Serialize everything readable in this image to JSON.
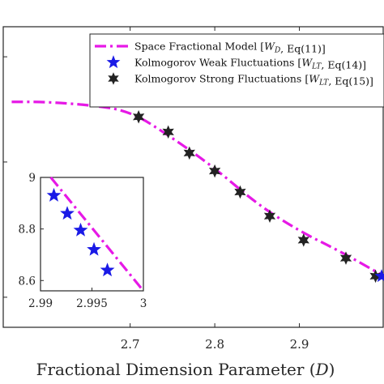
{
  "chart_data": [
    {
      "type": "line",
      "xlabel": "Fractional Dimension Parameter (D)",
      "xlim": [
        2.55,
        3.0
      ],
      "ylim": [
        8.45,
        9.45
      ],
      "x_ticks": [
        "2.7",
        "2.8",
        "2.9"
      ],
      "legend": {
        "position": "top-right",
        "entries": [
          "Space Fractional Model [W_D, Eq(11)]",
          "Kolmogorov Weak Fluctuations [W_LT, Eq(14)]",
          "Kolmogorov Strong Fluctuations [W_LT, Eq(15)]"
        ]
      },
      "series": [
        {
          "name": "Space Fractional Model [W_D, Eq(11)]",
          "style": "dash-dot line",
          "color": "#e619e6",
          "x": [
            2.56,
            2.6,
            2.65,
            2.7,
            2.75,
            2.8,
            2.85,
            2.9,
            2.95,
            3.0
          ],
          "y": [
            9.2,
            9.2,
            9.19,
            9.17,
            9.08,
            8.98,
            8.86,
            8.77,
            8.7,
            8.62
          ]
        },
        {
          "name": "Kolmogorov Strong Fluctuations [W_LT, Eq(15)]",
          "style": "6-point star markers",
          "color": "#222222",
          "x": [
            2.67,
            2.71,
            2.745,
            2.77,
            2.8,
            2.83,
            2.865,
            2.905,
            2.955,
            2.99
          ],
          "y": [
            9.27,
            9.15,
            9.1,
            9.03,
            8.97,
            8.9,
            8.82,
            8.74,
            8.68,
            8.62
          ]
        },
        {
          "name": "Kolmogorov Weak Fluctuations [W_LT, Eq(14)]",
          "style": "5-point star markers",
          "color": "#1a1ae6",
          "x": [
            3.0
          ],
          "y": [
            8.62
          ]
        }
      ]
    },
    {
      "type": "line",
      "role": "inset",
      "xlim": [
        2.99,
        3.0
      ],
      "ylim": [
        8.56,
        9.0
      ],
      "x_ticks": [
        "2.99",
        "2.995",
        "3"
      ],
      "y_ticks": [
        "8.6",
        "8.8",
        "9"
      ],
      "series": [
        {
          "name": "Space Fractional Model [W_D, Eq(11)]",
          "style": "dash-dot line",
          "color": "#e619e6",
          "x": [
            2.991,
            3.0
          ],
          "y": [
            9.0,
            8.56
          ]
        },
        {
          "name": "Kolmogorov Weak Fluctuations [W_LT, Eq(14)]",
          "style": "5-point star markers",
          "color": "#1a1ae6",
          "x": [
            2.9913,
            2.9926,
            2.9939,
            2.9952,
            2.9965
          ],
          "y": [
            8.93,
            8.86,
            8.795,
            8.72,
            8.64
          ]
        }
      ]
    }
  ]
}
